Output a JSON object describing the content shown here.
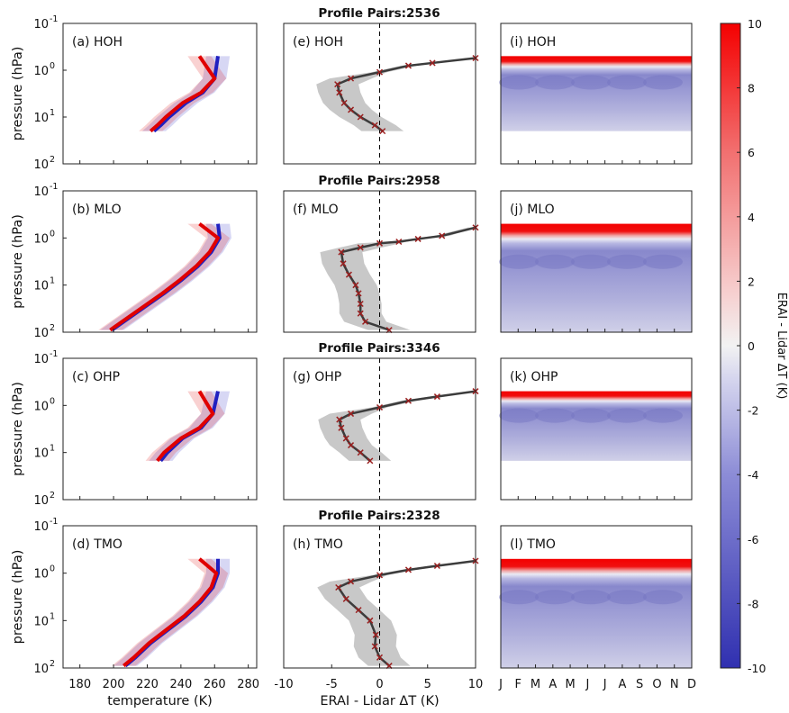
{
  "figure": {
    "row_titles": [
      "Profile Pairs:2536",
      "Profile Pairs:2958",
      "Profile Pairs:3346",
      "Profile Pairs:2328"
    ],
    "ylabel": "pressure (hPa)",
    "y_ticks": [
      "10",
      "10",
      "10",
      "10",
      "10"
    ],
    "y_tick_exps": [
      "-1",
      "0",
      "1",
      "2"
    ],
    "colorbar_label": "ERAI - Lidar ΔT (K)",
    "colorbar_ticks": [
      "10",
      "8",
      "6",
      "4",
      "2",
      "0",
      "-2",
      "-4",
      "-6",
      "-8",
      "-10"
    ],
    "colors": {
      "erai": "#e00000",
      "lidar": "#2020c0",
      "diff_line": "#3c3c3c",
      "diff_marker": "#9a2020",
      "shading": "#c8c8c8"
    }
  },
  "chart_data": [
    {
      "type": "line",
      "panel": "(a) HOH",
      "xlabel": "temperature (K)",
      "x_ticks": [
        "180",
        "200",
        "220",
        "240",
        "260",
        "280"
      ],
      "xlim": [
        170,
        285
      ],
      "ylim": [
        100,
        0.1
      ],
      "yscale": "log",
      "series": [
        {
          "color": "lidar",
          "points": [
            [
              224,
              20
            ],
            [
              228,
              15
            ],
            [
              233,
              10
            ],
            [
              243,
              5
            ],
            [
              253,
              3
            ],
            [
              260,
              1.5
            ],
            [
              262,
              0.5
            ]
          ]
        },
        {
          "color": "erai",
          "points": [
            [
              222,
              20
            ],
            [
              226,
              15
            ],
            [
              231,
              10
            ],
            [
              241,
              5
            ],
            [
              252,
              3
            ],
            [
              260,
              1.5
            ],
            [
              251,
              0.5
            ]
          ]
        }
      ]
    },
    {
      "type": "line",
      "panel": "(e) HOH",
      "xlabel": "",
      "x_ticks": [],
      "xlim": [
        -10,
        10
      ],
      "ylim": [
        100,
        0.1
      ],
      "yscale": "log",
      "series": [
        {
          "name": "ERAI - Lidar",
          "points": [
            [
              0.3,
              20
            ],
            [
              -0.5,
              15
            ],
            [
              -2,
              10
            ],
            [
              -3,
              7
            ],
            [
              -3.7,
              5
            ],
            [
              -4.2,
              3
            ],
            [
              -4.4,
              2
            ],
            [
              -3,
              1.5
            ],
            [
              0,
              1.1
            ],
            [
              3,
              0.8
            ],
            [
              5.5,
              0.7
            ],
            [
              10,
              0.55
            ]
          ]
        }
      ]
    },
    {
      "type": "heatmap",
      "panel": "(i) HOH",
      "x_ticks": [
        "J",
        "F",
        "M",
        "A",
        "M",
        "J",
        "J",
        "A",
        "S",
        "O",
        "N",
        "D"
      ],
      "ylim": [
        100,
        0.1
      ]
    },
    {
      "type": "line",
      "panel": "(b) MLO",
      "xlabel": "temperature (K)",
      "x_ticks": [
        "180",
        "200",
        "220",
        "240",
        "260",
        "280"
      ],
      "xlim": [
        170,
        285
      ],
      "ylim": [
        100,
        0.1
      ],
      "yscale": "log",
      "series": [
        {
          "color": "lidar",
          "points": [
            [
              199,
              90
            ],
            [
              206,
              60
            ],
            [
              218,
              30
            ],
            [
              230,
              15
            ],
            [
              240,
              8
            ],
            [
              250,
              4
            ],
            [
              258,
              2
            ],
            [
              263,
              1
            ],
            [
              262,
              0.5
            ]
          ]
        },
        {
          "color": "erai",
          "points": [
            [
              198,
              90
            ],
            [
              205,
              60
            ],
            [
              217,
              30
            ],
            [
              229,
              15
            ],
            [
              239,
              8
            ],
            [
              249,
              4
            ],
            [
              257,
              2
            ],
            [
              262,
              1
            ],
            [
              251,
              0.5
            ]
          ]
        }
      ]
    },
    {
      "type": "line",
      "panel": "(f) MLO",
      "xlabel": "",
      "x_ticks": [],
      "xlim": [
        -10,
        10
      ],
      "ylim": [
        100,
        0.1
      ],
      "yscale": "log",
      "series": [
        {
          "name": "ERAI - Lidar",
          "points": [
            [
              1,
              90
            ],
            [
              -1.5,
              60
            ],
            [
              -2,
              40
            ],
            [
              -2,
              25
            ],
            [
              -2.2,
              15
            ],
            [
              -2.5,
              10
            ],
            [
              -3.2,
              6
            ],
            [
              -3.8,
              3.5
            ],
            [
              -4,
              2
            ],
            [
              -2,
              1.6
            ],
            [
              0,
              1.3
            ],
            [
              2,
              1.2
            ],
            [
              4,
              1.05
            ],
            [
              6.5,
              0.9
            ],
            [
              10,
              0.6
            ]
          ]
        }
      ]
    },
    {
      "type": "heatmap",
      "panel": "(j) MLO",
      "x_ticks": [
        "J",
        "F",
        "M",
        "A",
        "M",
        "J",
        "J",
        "A",
        "S",
        "O",
        "N",
        "D"
      ],
      "ylim": [
        100,
        0.1
      ]
    },
    {
      "type": "line",
      "panel": "(c) OHP",
      "xlabel": "temperature (K)",
      "x_ticks": [
        "180",
        "200",
        "220",
        "240",
        "260",
        "280"
      ],
      "xlim": [
        170,
        285
      ],
      "ylim": [
        100,
        0.1
      ],
      "yscale": "log",
      "series": [
        {
          "color": "lidar",
          "points": [
            [
              228,
              15
            ],
            [
              232,
              10
            ],
            [
              241,
              5
            ],
            [
              252,
              3
            ],
            [
              259,
              1.5
            ],
            [
              262,
              0.5
            ]
          ]
        },
        {
          "color": "erai",
          "points": [
            [
              226,
              15
            ],
            [
              230,
              10
            ],
            [
              240,
              5
            ],
            [
              251,
              3
            ],
            [
              259,
              1.5
            ],
            [
              251,
              0.5
            ]
          ]
        }
      ]
    },
    {
      "type": "line",
      "panel": "(g) OHP",
      "xlabel": "",
      "x_ticks": [],
      "xlim": [
        -10,
        10
      ],
      "ylim": [
        100,
        0.1
      ],
      "yscale": "log",
      "series": [
        {
          "name": "ERAI - Lidar",
          "points": [
            [
              -1,
              15
            ],
            [
              -2,
              10
            ],
            [
              -3,
              7
            ],
            [
              -3.5,
              5
            ],
            [
              -4,
              3
            ],
            [
              -4.2,
              2
            ],
            [
              -3,
              1.5
            ],
            [
              0,
              1.1
            ],
            [
              3,
              0.8
            ],
            [
              6,
              0.65
            ],
            [
              10,
              0.5
            ]
          ]
        }
      ]
    },
    {
      "type": "heatmap",
      "panel": "(k) OHP",
      "x_ticks": [
        "J",
        "F",
        "M",
        "A",
        "M",
        "J",
        "J",
        "A",
        "S",
        "O",
        "N",
        "D"
      ],
      "ylim": [
        100,
        0.1
      ]
    },
    {
      "type": "line",
      "panel": "(d) TMO",
      "xlabel": "temperature (K)",
      "x_ticks": [
        "180",
        "200",
        "220",
        "240",
        "260",
        "280"
      ],
      "xlim": [
        170,
        285
      ],
      "ylim": [
        100,
        0.1
      ],
      "yscale": "log",
      "series": [
        {
          "color": "lidar",
          "points": [
            [
              207,
              90
            ],
            [
              213,
              60
            ],
            [
              222,
              30
            ],
            [
              233,
              15
            ],
            [
              243,
              8
            ],
            [
              252,
              4
            ],
            [
              259,
              2
            ],
            [
              262,
              1
            ],
            [
              262,
              0.5
            ]
          ]
        },
        {
          "color": "erai",
          "points": [
            [
              206,
              90
            ],
            [
              212,
              60
            ],
            [
              221,
              30
            ],
            [
              232,
              15
            ],
            [
              242,
              8
            ],
            [
              251,
              4
            ],
            [
              258,
              2
            ],
            [
              261,
              1
            ],
            [
              251,
              0.5
            ]
          ]
        }
      ]
    },
    {
      "type": "line",
      "panel": "(h) TMO",
      "xlabel": "ERAI - Lidar ΔT (K)",
      "x_ticks": [
        "-10",
        "-5",
        "0",
        "5",
        "10"
      ],
      "xlim": [
        -10,
        10
      ],
      "ylim": [
        100,
        0.1
      ],
      "yscale": "log",
      "series": [
        {
          "name": "ERAI - Lidar",
          "points": [
            [
              1,
              90
            ],
            [
              0,
              60
            ],
            [
              -0.5,
              35
            ],
            [
              -0.4,
              20
            ],
            [
              -1,
              10
            ],
            [
              -2.2,
              6
            ],
            [
              -3.5,
              3.5
            ],
            [
              -4.3,
              2
            ],
            [
              -3,
              1.5
            ],
            [
              0,
              1.1
            ],
            [
              3,
              0.85
            ],
            [
              6,
              0.7
            ],
            [
              10,
              0.55
            ]
          ]
        }
      ]
    },
    {
      "type": "heatmap",
      "panel": "(l) TMO",
      "xlabel": "",
      "x_ticks": [
        "J",
        "F",
        "M",
        "A",
        "M",
        "J",
        "J",
        "A",
        "S",
        "O",
        "N",
        "D"
      ],
      "ylim": [
        100,
        0.1
      ]
    }
  ]
}
